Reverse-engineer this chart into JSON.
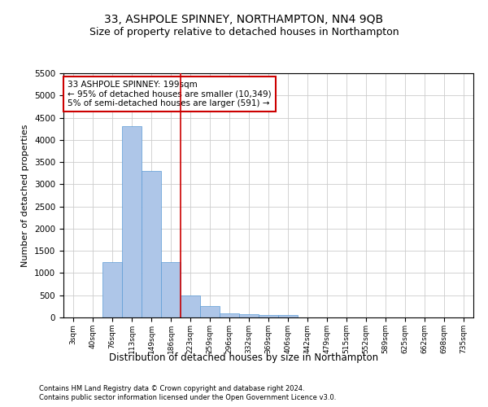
{
  "title": "33, ASHPOLE SPINNEY, NORTHAMPTON, NN4 9QB",
  "subtitle": "Size of property relative to detached houses in Northampton",
  "xlabel": "Distribution of detached houses by size in Northampton",
  "ylabel": "Number of detached properties",
  "footnote1": "Contains HM Land Registry data © Crown copyright and database right 2024.",
  "footnote2": "Contains public sector information licensed under the Open Government Licence v3.0.",
  "categories": [
    "3sqm",
    "40sqm",
    "76sqm",
    "113sqm",
    "149sqm",
    "186sqm",
    "223sqm",
    "259sqm",
    "296sqm",
    "332sqm",
    "369sqm",
    "406sqm",
    "442sqm",
    "479sqm",
    "515sqm",
    "552sqm",
    "589sqm",
    "625sqm",
    "662sqm",
    "698sqm",
    "735sqm"
  ],
  "values": [
    0,
    0,
    1250,
    4300,
    3300,
    1250,
    500,
    250,
    100,
    75,
    60,
    60,
    0,
    0,
    0,
    0,
    0,
    0,
    0,
    0,
    0
  ],
  "bar_color": "#aec6e8",
  "bar_edge_color": "#5b9bd5",
  "ylim": [
    0,
    5500
  ],
  "yticks": [
    0,
    500,
    1000,
    1500,
    2000,
    2500,
    3000,
    3500,
    4000,
    4500,
    5000,
    5500
  ],
  "vline_color": "#cc0000",
  "annotation_text": "33 ASHPOLE SPINNEY: 199sqm\n← 95% of detached houses are smaller (10,349)\n5% of semi-detached houses are larger (591) →",
  "annotation_box_color": "#cc0000",
  "background_color": "#ffffff",
  "grid_color": "#cccccc",
  "title_fontsize": 10,
  "subtitle_fontsize": 9
}
